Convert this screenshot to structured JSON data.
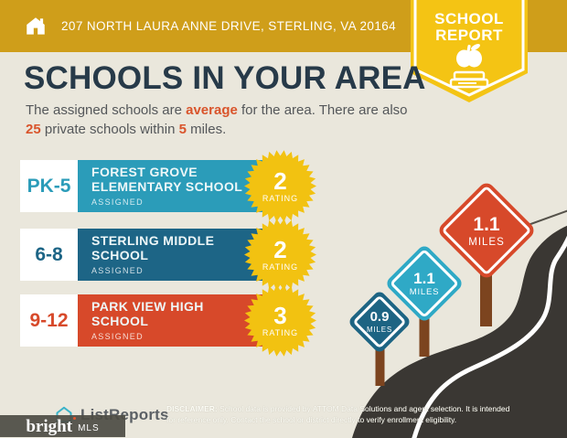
{
  "header": {
    "address": "207 NORTH LAURA ANNE DRIVE, STERLING, VA 20164"
  },
  "badge": {
    "line1": "SCHOOL",
    "line2": "REPORT"
  },
  "main": {
    "title": "SCHOOLS IN YOUR AREA",
    "intro": {
      "part1": "The assigned schools are ",
      "highlight1": "average",
      "part2": " for the area. There are also ",
      "highlight2": "25",
      "part3": " private schools within ",
      "highlight3": "5",
      "part4": " miles."
    }
  },
  "schools": [
    {
      "grades": "PK-5",
      "name": "FOREST GROVE ELEMENTARY SCHOOL",
      "status": "ASSIGNED",
      "rating": "2",
      "rating_label": "RATING",
      "color": "#2b9cb9"
    },
    {
      "grades": "6-8",
      "name": "STERLING MIDDLE SCHOOL",
      "status": "ASSIGNED",
      "rating": "2",
      "rating_label": "RATING",
      "color": "#1d6586"
    },
    {
      "grades": "9-12",
      "name": "PARK VIEW HIGH SCHOOL",
      "status": "ASSIGNED",
      "rating": "3",
      "rating_label": "RATING",
      "color": "#d7492a"
    }
  ],
  "signs": [
    {
      "distance": "0.9",
      "unit": "MILES",
      "color": "#1d6483"
    },
    {
      "distance": "1.1",
      "unit": "MILES",
      "color": "#2fa9c6"
    },
    {
      "distance": "1.1",
      "unit": "MILES",
      "color": "#d7492a"
    }
  ],
  "footer": {
    "brand": "ListReports",
    "mls_name": "bright",
    "mls_suffix": "MLS",
    "disclaimer_label": "DISCLAIMER:",
    "disclaimer_text": " School data is provided by ATTOM Data Solutions and agent selection. It is intended for reference only. Contact the school or district directly to verify enrollment eligibility."
  },
  "colors": {
    "header_gold": "#cf9e1a",
    "badge_yellow": "#f4c414",
    "background": "#eae7dc",
    "title_navy": "#273a49",
    "accent_orange": "#d9542b",
    "rating_badge_gold": "#f2c211",
    "road_charcoal": "#3a3733",
    "post_brown": "#7c441f"
  }
}
